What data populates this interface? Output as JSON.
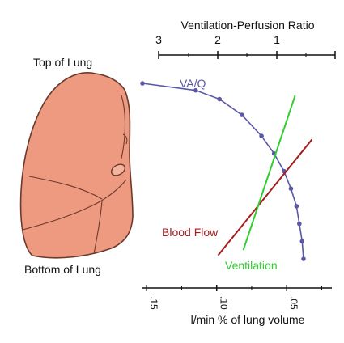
{
  "labels": {
    "top_axis_title": "Ventilation-Perfusion Ratio",
    "bottom_axis_title": "l/min % of lung volume",
    "top_of_lung": "Top of Lung",
    "bottom_of_lung": "Bottom of Lung"
  },
  "colors": {
    "lung_fill": "#ee9a80",
    "lung_stroke": "#6b3a2c",
    "vaq": "#5a57a6",
    "blood_flow": "#a51d1d",
    "ventilation": "#33cc33",
    "axis": "#111111"
  },
  "chart_data": {
    "type": "line",
    "top_axis": {
      "label": "Ventilation-Perfusion Ratio",
      "ticks": [
        "3",
        "2",
        "1"
      ]
    },
    "bottom_axis": {
      "label": "l/min % of lung volume",
      "ticks": [
        ".15",
        ".10",
        ".05"
      ],
      "reversed": true
    },
    "series": [
      {
        "name": "VA/Q",
        "color": "#5a57a6",
        "markers": true,
        "x": [
          0.153,
          0.115,
          0.098,
          0.082,
          0.068,
          0.059,
          0.052,
          0.047,
          0.043,
          0.041,
          0.039,
          0.038
        ],
        "y": [
          1.0,
          0.96,
          0.91,
          0.82,
          0.7,
          0.6,
          0.5,
          0.4,
          0.3,
          0.2,
          0.1,
          0.0
        ]
      },
      {
        "name": "Blood Flow",
        "color": "#a51d1d",
        "x": [
          0.099,
          0.032
        ],
        "y": [
          0.02,
          0.68
        ]
      },
      {
        "name": "Ventilation",
        "color": "#33cc33",
        "x": [
          0.081,
          0.044
        ],
        "y": [
          0.05,
          0.93
        ]
      }
    ]
  }
}
